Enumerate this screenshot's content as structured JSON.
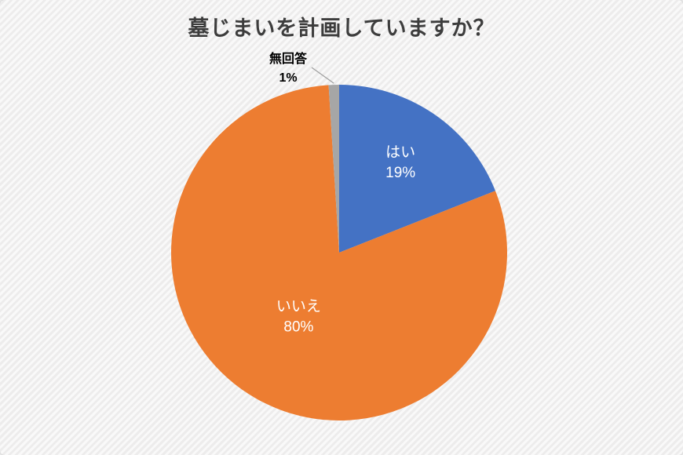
{
  "chart_data": {
    "type": "pie",
    "title": "墓じまいを計画していますか？",
    "categories": [
      "はい",
      "いいえ",
      "無回答"
    ],
    "values": [
      19,
      80,
      1
    ],
    "value_labels": [
      "19%",
      "80%",
      "1%"
    ],
    "colors": [
      "#4472C4",
      "#ED7D31",
      "#A6A6A6"
    ],
    "label_positions": [
      "inside",
      "inside",
      "outside"
    ],
    "inside_label_color": "#FFFFFF",
    "outside_label_color": "#000000",
    "leader_line_color": "#A0A0A0",
    "start_angle_deg": 0,
    "direction": "clockwise",
    "legend": "none"
  }
}
